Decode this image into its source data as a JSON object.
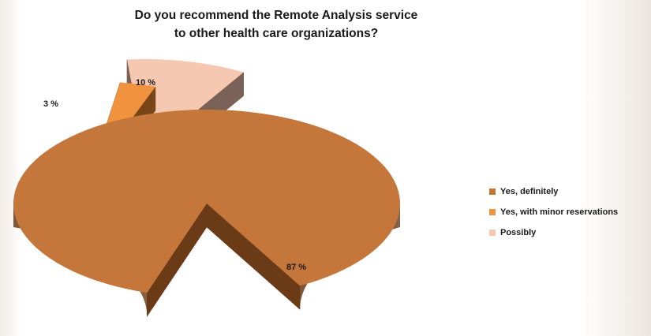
{
  "chart_data": {
    "type": "pie",
    "title_lines": [
      "Do you recommend the Remote Analysis service",
      "to other health care organizations?"
    ],
    "three_d": true,
    "exploded": true,
    "legend_position": "right",
    "slices": [
      {
        "label": "Yes, definitely",
        "value": 87,
        "display": "87 %",
        "color": "#c5763a",
        "side_color": "#6b3a16"
      },
      {
        "label": "Yes, with minor reservations",
        "value": 3,
        "display": "3 %",
        "color": "#f0923e",
        "side_color": "#7a4419"
      },
      {
        "label": "Possibly",
        "value": 10,
        "display": "10 %",
        "color": "#f6c7b1",
        "side_color": "#7a6258"
      }
    ]
  }
}
